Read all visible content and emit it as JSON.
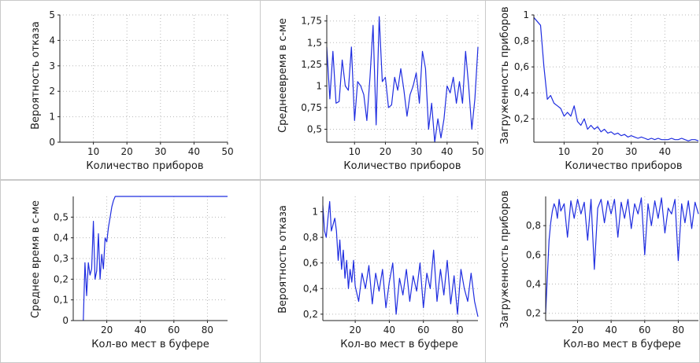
{
  "colors": {
    "line": "#1f2de0",
    "separator": "#c9c9c9"
  },
  "chart_data": [
    {
      "type": "line",
      "xlabel": "Количество приборов",
      "ylabel": "Вероятность отказа",
      "xlim": [
        0,
        50
      ],
      "ylim": [
        0,
        5
      ],
      "xticks": [
        10,
        20,
        30,
        40,
        50
      ],
      "yticks": [
        0,
        1,
        2,
        3,
        4,
        5
      ],
      "ytick_labels": [
        "0",
        "1",
        "2",
        "3",
        "4",
        "5"
      ],
      "grid": true,
      "series": [
        {
          "x": [],
          "y": []
        }
      ]
    },
    {
      "type": "line",
      "xlabel": "Количество приборов",
      "ylabel": "Среднеевремя в с-ме",
      "xlim": [
        1,
        50
      ],
      "ylim": [
        0.35,
        1.82
      ],
      "xticks": [
        10,
        20,
        30,
        40,
        50
      ],
      "yticks": [
        0.5,
        0.75,
        1,
        1.25,
        1.5,
        1.75
      ],
      "ytick_labels": [
        "0,5",
        "0,75",
        "1",
        "1,25",
        "1,5",
        "1,75"
      ],
      "grid": true,
      "series": [
        {
          "x": [
            1,
            2,
            3,
            4,
            5,
            6,
            7,
            8,
            9,
            10,
            11,
            12,
            13,
            14,
            15,
            16,
            17,
            18,
            19,
            20,
            21,
            22,
            23,
            24,
            25,
            26,
            27,
            28,
            29,
            30,
            31,
            32,
            33,
            34,
            35,
            36,
            37,
            38,
            39,
            40,
            41,
            42,
            43,
            44,
            45,
            46,
            47,
            48,
            49,
            50
          ],
          "y": [
            1.45,
            0.85,
            1.4,
            0.8,
            0.82,
            1.3,
            1.0,
            0.95,
            1.45,
            0.6,
            1.05,
            1.0,
            0.9,
            0.6,
            1.1,
            1.7,
            0.55,
            1.8,
            1.05,
            1.1,
            0.75,
            0.78,
            1.1,
            0.95,
            1.2,
            0.95,
            0.65,
            0.9,
            1.0,
            1.15,
            0.8,
            1.4,
            1.2,
            0.5,
            0.8,
            0.35,
            0.62,
            0.4,
            0.62,
            1.0,
            0.92,
            1.1,
            0.8,
            1.05,
            0.8,
            1.4,
            1.0,
            0.5,
            0.85,
            1.45
          ]
        }
      ]
    },
    {
      "type": "line",
      "xlabel": "Количество приборов",
      "ylabel": "Загруженность приборов",
      "xlim": [
        1,
        50
      ],
      "ylim": [
        0.02,
        1.0
      ],
      "xticks": [
        10,
        20,
        30,
        40
      ],
      "yticks": [
        0.2,
        0.4,
        0.6,
        0.8,
        1
      ],
      "ytick_labels": [
        "0,2",
        "0,4",
        "0,6",
        "0,8",
        "1"
      ],
      "grid": true,
      "series": [
        {
          "x": [
            1,
            2,
            3,
            4,
            5,
            6,
            7,
            8,
            9,
            10,
            11,
            12,
            13,
            14,
            15,
            16,
            17,
            18,
            19,
            20,
            21,
            22,
            23,
            24,
            25,
            26,
            27,
            28,
            29,
            30,
            31,
            32,
            33,
            34,
            35,
            36,
            37,
            38,
            39,
            40,
            41,
            42,
            43,
            44,
            45,
            46,
            47,
            48,
            49,
            50
          ],
          "y": [
            0.98,
            0.95,
            0.92,
            0.6,
            0.35,
            0.38,
            0.32,
            0.3,
            0.28,
            0.22,
            0.25,
            0.22,
            0.3,
            0.18,
            0.15,
            0.2,
            0.12,
            0.15,
            0.12,
            0.14,
            0.1,
            0.12,
            0.09,
            0.1,
            0.08,
            0.09,
            0.07,
            0.08,
            0.06,
            0.07,
            0.06,
            0.05,
            0.06,
            0.05,
            0.04,
            0.05,
            0.04,
            0.05,
            0.04,
            0.04,
            0.04,
            0.05,
            0.04,
            0.04,
            0.05,
            0.04,
            0.03,
            0.04,
            0.04,
            0.03
          ]
        }
      ]
    },
    {
      "type": "line",
      "xlabel": "Кол-во мест в буфере",
      "ylabel": "Среднее время в с-ме",
      "xlim": [
        0,
        92
      ],
      "ylim": [
        0,
        0.6
      ],
      "xticks": [
        20,
        40,
        60,
        80
      ],
      "yticks": [
        0,
        0.1,
        0.2,
        0.3,
        0.4,
        0.5
      ],
      "ytick_labels": [
        "0",
        "0,1",
        "0,2",
        "0,3",
        "0,4",
        "0,5"
      ],
      "grid": true,
      "series": [
        {
          "x": [
            6,
            7,
            8,
            9,
            10,
            11,
            12,
            13,
            14,
            15,
            16,
            17,
            18,
            19,
            20,
            21,
            22,
            23,
            24,
            25,
            26,
            30,
            40,
            50,
            60,
            70,
            80,
            92
          ],
          "y": [
            0.0,
            0.28,
            0.12,
            0.28,
            0.22,
            0.25,
            0.48,
            0.2,
            0.24,
            0.42,
            0.2,
            0.32,
            0.25,
            0.4,
            0.38,
            0.45,
            0.5,
            0.55,
            0.58,
            0.6,
            0.6,
            0.6,
            0.6,
            0.6,
            0.6,
            0.6,
            0.6,
            0.6
          ]
        }
      ]
    },
    {
      "type": "line",
      "xlabel": "Кол-во мест в буфере",
      "ylabel": "Вероятность отказа",
      "xlim": [
        1,
        92
      ],
      "ylim": [
        0.15,
        1.12
      ],
      "xticks": [
        20,
        40,
        60,
        80
      ],
      "yticks": [
        0.2,
        0.4,
        0.6,
        0.8,
        1
      ],
      "ytick_labels": [
        "0,2",
        "0,4",
        "0,6",
        "0,8",
        "1"
      ],
      "grid": true,
      "series": [
        {
          "x": [
            1,
            2,
            3,
            4,
            5,
            6,
            7,
            8,
            9,
            10,
            11,
            12,
            13,
            14,
            15,
            16,
            17,
            18,
            19,
            20,
            22,
            24,
            26,
            28,
            30,
            32,
            34,
            36,
            38,
            40,
            42,
            44,
            46,
            48,
            50,
            52,
            54,
            56,
            58,
            60,
            62,
            64,
            66,
            68,
            70,
            72,
            74,
            76,
            78,
            80,
            82,
            84,
            86,
            88,
            90,
            92
          ],
          "y": [
            1.05,
            0.85,
            0.8,
            0.95,
            1.08,
            0.85,
            0.9,
            0.95,
            0.85,
            0.62,
            0.78,
            0.55,
            0.7,
            0.48,
            0.62,
            0.4,
            0.55,
            0.45,
            0.62,
            0.42,
            0.3,
            0.52,
            0.4,
            0.58,
            0.28,
            0.52,
            0.38,
            0.55,
            0.25,
            0.45,
            0.6,
            0.2,
            0.48,
            0.35,
            0.55,
            0.3,
            0.5,
            0.38,
            0.6,
            0.25,
            0.52,
            0.4,
            0.7,
            0.3,
            0.55,
            0.35,
            0.62,
            0.28,
            0.5,
            0.2,
            0.55,
            0.4,
            0.3,
            0.52,
            0.3,
            0.18
          ]
        }
      ]
    },
    {
      "type": "line",
      "xlabel": "Кол-во мест в буфере",
      "ylabel": "Загруженность приборов",
      "xlim": [
        1,
        92
      ],
      "ylim": [
        0.15,
        1.0
      ],
      "xticks": [
        20,
        40,
        60,
        80
      ],
      "yticks": [
        0.2,
        0.4,
        0.6,
        0.8
      ],
      "ytick_labels": [
        "0,2",
        "0,4",
        "0,6",
        "0,8"
      ],
      "grid": true,
      "series": [
        {
          "x": [
            1,
            2,
            3,
            4,
            5,
            6,
            7,
            8,
            9,
            10,
            12,
            14,
            16,
            18,
            20,
            22,
            24,
            26,
            28,
            30,
            32,
            34,
            36,
            38,
            40,
            42,
            44,
            46,
            48,
            50,
            52,
            54,
            56,
            58,
            60,
            62,
            64,
            66,
            68,
            70,
            72,
            74,
            76,
            78,
            80,
            82,
            84,
            86,
            88,
            90,
            92
          ],
          "y": [
            0.2,
            0.45,
            0.7,
            0.82,
            0.9,
            0.95,
            0.92,
            0.85,
            0.98,
            0.9,
            0.95,
            0.72,
            0.97,
            0.85,
            0.98,
            0.88,
            0.96,
            0.7,
            0.98,
            0.5,
            0.92,
            0.98,
            0.82,
            0.97,
            0.88,
            0.98,
            0.72,
            0.96,
            0.85,
            0.98,
            0.78,
            0.95,
            0.88,
            0.99,
            0.6,
            0.95,
            0.8,
            0.97,
            0.85,
            0.99,
            0.75,
            0.92,
            0.88,
            0.98,
            0.56,
            0.95,
            0.82,
            0.97,
            0.78,
            0.96,
            0.88
          ]
        }
      ]
    }
  ]
}
